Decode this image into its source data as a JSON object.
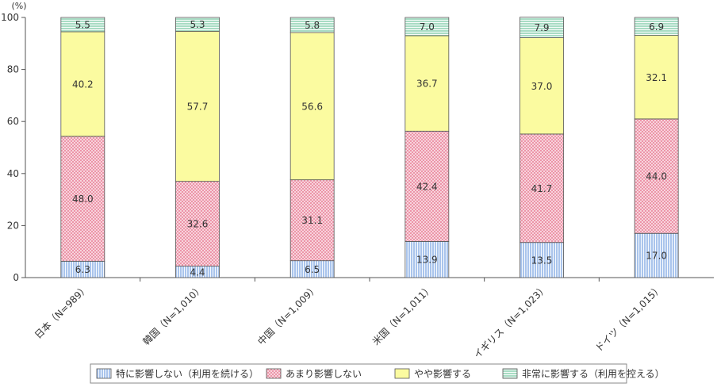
{
  "chart_data": {
    "type": "bar",
    "stacked": true,
    "unit_label": "(%)",
    "categories": [
      "日本（N=989）",
      "韓国（N=1,010）",
      "中国（N=1,009）",
      "米国（N=1,011）",
      "イギリス（N=1,023）",
      "ドイツ（N=1,015）"
    ],
    "series": [
      {
        "name": "特に影響しない（利用を続ける）",
        "values": [
          6.3,
          4.4,
          6.5,
          13.9,
          13.5,
          17.0
        ],
        "color": "#a9c4ec",
        "pattern": "vertical-lines"
      },
      {
        "name": "あまり影響しない",
        "values": [
          48.0,
          32.6,
          31.1,
          42.4,
          41.7,
          44.0
        ],
        "color": "#f7c9d4",
        "pattern": "crosshatch"
      },
      {
        "name": "やや影響する",
        "values": [
          40.2,
          57.7,
          56.6,
          36.7,
          37.0,
          32.1
        ],
        "color": "#fbfba0",
        "pattern": "none"
      },
      {
        "name": "非常に影響する（利用を控える）",
        "values": [
          5.5,
          5.3,
          5.8,
          7.0,
          7.9,
          6.9
        ],
        "color": "#a8dcc4",
        "pattern": "horizontal-lines"
      }
    ],
    "ylim": [
      0,
      100
    ],
    "yticks": [
      0,
      20,
      40,
      60,
      80,
      100
    ],
    "legend_position": "bottom",
    "grid": false
  }
}
